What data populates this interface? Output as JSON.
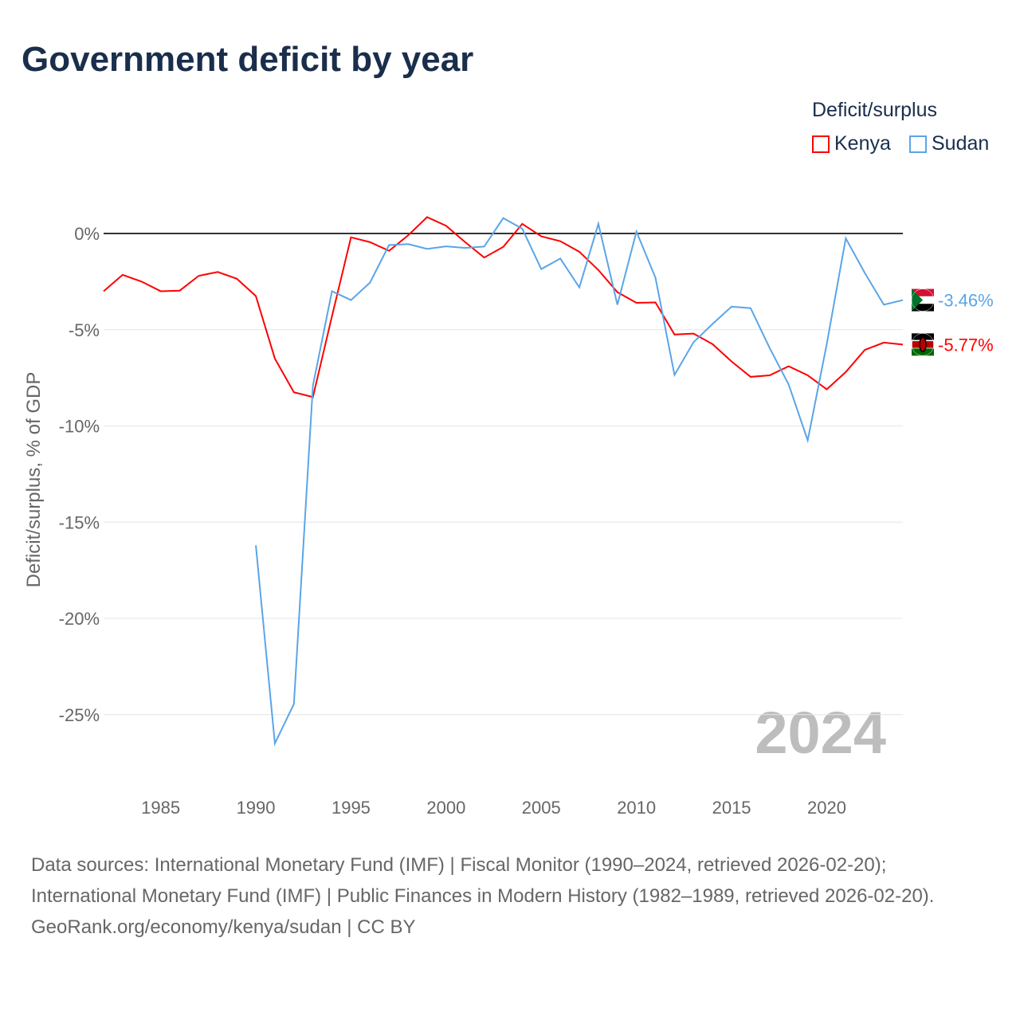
{
  "chart_data": {
    "type": "line",
    "title": "Government deficit by year",
    "ylabel": "Deficit/surplus, % of GDP",
    "xlabel": "",
    "xlim": [
      1982,
      2024
    ],
    "ylim": [
      -28,
      3
    ],
    "xticks": [
      1985,
      1990,
      1995,
      2000,
      2005,
      2010,
      2015,
      2020
    ],
    "yticks": [
      0,
      -5,
      -10,
      -15,
      -20,
      -25
    ],
    "ytick_labels": [
      "0%",
      "-5%",
      "-10%",
      "-15%",
      "-20%",
      "-25%"
    ],
    "legend_title": "Deficit/surplus",
    "legend_position": "top-right",
    "year_watermark": "2024",
    "series": [
      {
        "name": "Kenya",
        "color": "#ff0000",
        "end_label": "-5.77%",
        "x": [
          1982,
          1983,
          1984,
          1985,
          1986,
          1987,
          1988,
          1989,
          1990,
          1991,
          1992,
          1993,
          1994,
          1995,
          1996,
          1997,
          1998,
          1999,
          2000,
          2001,
          2002,
          2003,
          2004,
          2005,
          2006,
          2007,
          2008,
          2009,
          2010,
          2011,
          2012,
          2013,
          2014,
          2015,
          2016,
          2017,
          2018,
          2019,
          2020,
          2021,
          2022,
          2023,
          2024
        ],
        "values": [
          -3.0,
          -2.15,
          -2.5,
          -3.0,
          -2.97,
          -2.2,
          -2.0,
          -2.35,
          -3.25,
          -6.5,
          -8.25,
          -8.5,
          -4.3,
          -0.2,
          -0.45,
          -0.9,
          -0.1,
          0.85,
          0.4,
          -0.45,
          -1.25,
          -0.7,
          0.5,
          -0.15,
          -0.4,
          -0.95,
          -1.9,
          -3.05,
          -3.6,
          -3.58,
          -5.25,
          -5.2,
          -5.75,
          -6.65,
          -7.45,
          -7.37,
          -6.9,
          -7.37,
          -8.1,
          -7.2,
          -6.05,
          -5.67,
          -5.77
        ]
      },
      {
        "name": "Sudan",
        "color": "#5aa5e8",
        "end_label": "-3.46%",
        "x": [
          1990,
          1991,
          1992,
          1993,
          1994,
          1995,
          1996,
          1997,
          1998,
          1999,
          2000,
          2001,
          2002,
          2003,
          2004,
          2005,
          2006,
          2007,
          2008,
          2009,
          2010,
          2011,
          2012,
          2013,
          2014,
          2015,
          2016,
          2017,
          2018,
          2019,
          2020,
          2021,
          2022,
          2023,
          2024
        ],
        "values": [
          -16.2,
          -26.5,
          -24.45,
          -7.9,
          -3.0,
          -3.46,
          -2.55,
          -0.6,
          -0.55,
          -0.8,
          -0.67,
          -0.75,
          -0.68,
          0.8,
          0.25,
          -1.85,
          -1.3,
          -2.8,
          0.5,
          -3.7,
          0.1,
          -2.3,
          -7.35,
          -5.65,
          -4.7,
          -3.8,
          -3.88,
          -5.95,
          -7.85,
          -10.75,
          -5.75,
          -0.25,
          -2.05,
          -3.7,
          -3.46
        ]
      }
    ]
  },
  "footer": {
    "line1": "Data sources: International Monetary Fund (IMF) | Fiscal Monitor (1990–2024, retrieved 2026-02-20); International Monetary Fund (IMF) | Public Finances in Modern History (1982–1989, retrieved 2026-02-20).",
    "line2": "GeoRank.org/economy/kenya/sudan | CC BY"
  }
}
